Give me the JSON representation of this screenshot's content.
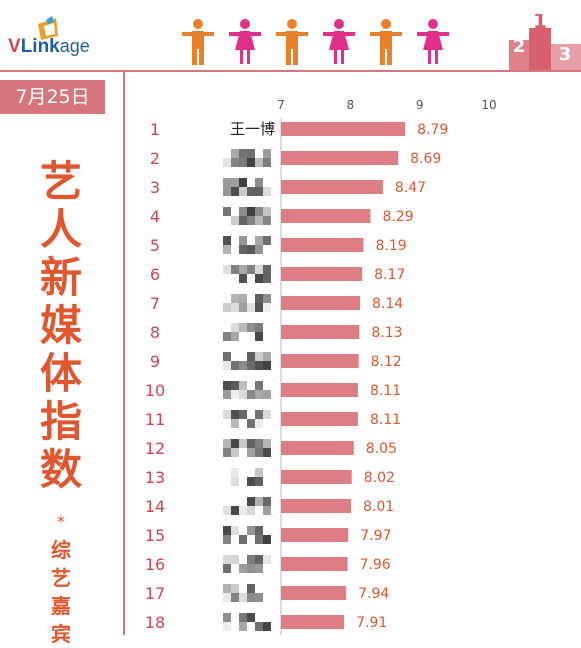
{
  "brand": {
    "logo_v": "V",
    "logo_link": "Link",
    "logo_age": "age"
  },
  "date_label": "7月25日",
  "title_chars": [
    "艺",
    "人",
    "新",
    "媒",
    "体",
    "指",
    "数"
  ],
  "title_star": "*",
  "subtitle_chars": [
    "综",
    "艺",
    "嘉",
    "宾"
  ],
  "colors": {
    "bar": "#de7d83",
    "accent": "#e0562e",
    "border": "#d6757c",
    "man": "#e8812a",
    "woman": "#e0308a"
  },
  "chart_data": {
    "type": "bar",
    "orientation": "horizontal",
    "xlim": [
      7,
      10
    ],
    "xticks": [
      7,
      8,
      9,
      10
    ],
    "grid": false,
    "categories": [
      "1",
      "2",
      "3",
      "4",
      "5",
      "6",
      "7",
      "8",
      "9",
      "10",
      "11",
      "12",
      "13",
      "14",
      "15",
      "16",
      "17",
      "18"
    ],
    "names": [
      "王一博",
      "",
      "",
      "",
      "",
      "",
      "",
      "",
      "",
      "",
      "",
      "",
      "",
      "",
      "",
      "",
      "",
      ""
    ],
    "values": [
      8.79,
      8.69,
      8.47,
      8.29,
      8.19,
      8.17,
      8.14,
      8.13,
      8.12,
      8.11,
      8.11,
      8.05,
      8.02,
      8.01,
      7.97,
      7.96,
      7.94,
      7.91
    ],
    "value_labels": [
      "8.79",
      "8.69",
      "8.47",
      "8.29",
      "8.19",
      "8.17",
      "8.14",
      "8.13",
      "8.12",
      "8.11",
      "8.11",
      "8.05",
      "8.02",
      "8.01",
      "7.97",
      "7.96",
      "7.94",
      "7.91"
    ]
  }
}
